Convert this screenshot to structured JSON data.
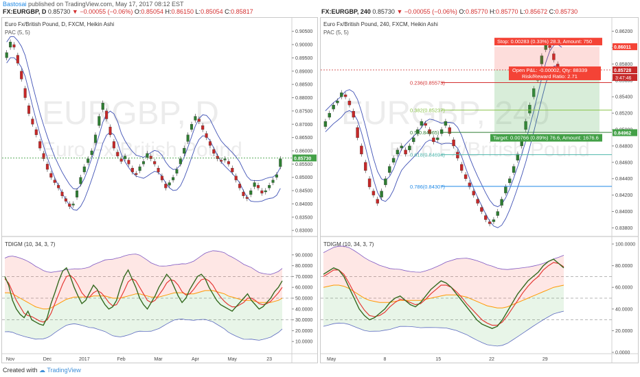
{
  "header": {
    "author": "Bastosai",
    "published": "published on TradingView.com, May 17, 2017 08:12 EST"
  },
  "left": {
    "ohlc": {
      "symbol": "FX:EURGBP, D",
      "last": "0.85730",
      "change": "▼ −0.00055 (−0.06%)",
      "o_label": "O:",
      "o": "0.85054",
      "h_label": "H:",
      "h": "0.86150",
      "l_label": "L:",
      "l": "0.85054",
      "c_label": "C:",
      "c": "0.85817"
    },
    "title": "Euro Fx/British Pound, D, FXCM, Heikin Ashi",
    "indicator": "PAC (5, 5)",
    "watermark_symbol": "EURGBP, D",
    "watermark_name": "Euro Fx/British Pound",
    "price_ticks": [
      "0.90500",
      "0.90000",
      "0.89500",
      "0.89000",
      "0.88500",
      "0.88000",
      "0.87500",
      "0.87000",
      "0.86500",
      "0.86000",
      "0.85500",
      "0.85000",
      "0.84500",
      "0.84000",
      "0.83500",
      "0.83000"
    ],
    "price_tag": "0.85730",
    "osc_title": "TDIGM (10, 34, 3, 7)",
    "osc_ticks": [
      "90.0000",
      "80.0000",
      "70.0000",
      "60.0000",
      "50.0000",
      "40.0000",
      "30.0000",
      "20.0000",
      "10.0000"
    ],
    "time_ticks": [
      "Nov",
      "Dec",
      "2017",
      "Feb",
      "Mar",
      "Apr",
      "May",
      "23"
    ]
  },
  "right": {
    "ohlc": {
      "symbol": "FX:EURGBP, 240",
      "last": "0.85730",
      "change": "▼ −0.00055 (−0.06%)",
      "o_label": "O:",
      "o": "0.85770",
      "h_label": "H:",
      "h": "0.85770",
      "l_label": "L:",
      "l": "0.85672",
      "c_label": "C:",
      "c": "0.85730"
    },
    "title": "Euro Fx/British Pound, 240, FXCM, Heikin Ashi",
    "indicator": "PAC (5, 5)",
    "watermark_symbol": "EURGBP, 240",
    "watermark_name": "Euro Fx/British Pound",
    "price_ticks": [
      "0.86200",
      "0.86000",
      "0.85800",
      "0.85600",
      "0.85400",
      "0.85200",
      "0.85000",
      "0.84800",
      "0.84600",
      "0.84400",
      "0.84200",
      "0.84000",
      "0.83800"
    ],
    "stop_label": "Stop: 0.00283 (0.33%) 28.3, Amount: 750",
    "stop_tag": "0.86011",
    "pnl_line1": "Open P&L: -0.00002, Qty: 88339",
    "pnl_line2": "Risk/Reward Ratio: 2.71",
    "price_tag": "0.85728",
    "time_tag": "3:47:46",
    "target_label": "Target: 0.00766 (0.89%) 76.6, Amount: 1676.6",
    "target_tag": "0.84962",
    "fib": [
      {
        "label": "0.236(0.85573)",
        "price": 0.85573,
        "color": "#d32f2f"
      },
      {
        "label": "0.382(0.85237)",
        "price": 0.85237,
        "color": "#8bc34a"
      },
      {
        "label": "0.5(0.84965)",
        "price": 0.84965,
        "color": "#2e7d32"
      },
      {
        "label": "0.618(0.84694)",
        "price": 0.84694,
        "color": "#4db6ac"
      },
      {
        "label": "0.786(0.84307)",
        "price": 0.84307,
        "color": "#1e88e5"
      }
    ],
    "osc_title": "TDIGM (10, 34, 3, 7)",
    "osc_ticks": [
      "100.0000",
      "80.0000",
      "60.0000",
      "40.0000",
      "20.0000",
      "0.0000"
    ],
    "time_ticks": [
      "May",
      "8",
      "15",
      "22",
      "29"
    ]
  },
  "footer": {
    "created_with": "Created with",
    "brand": "TradingView"
  },
  "colors": {
    "bull": "#2e7d32",
    "bear": "#c62828",
    "pac": "#3f51b5",
    "stop": "#f44336",
    "target": "#43a047"
  },
  "chart_data": [
    {
      "type": "candlestick",
      "title": "Euro Fx/British Pound, D, FXCM, Heikin Ashi",
      "ylim": [
        0.8285,
        0.9075
      ],
      "x_range": [
        "Nov",
        "23"
      ],
      "note_values": "approximate heikin-ashi path",
      "closes": [
        0.897,
        0.901,
        0.899,
        0.893,
        0.887,
        0.88,
        0.874,
        0.87,
        0.866,
        0.861,
        0.857,
        0.853,
        0.85,
        0.848,
        0.846,
        0.843,
        0.841,
        0.839,
        0.84,
        0.845,
        0.85,
        0.854,
        0.857,
        0.86,
        0.866,
        0.873,
        0.878,
        0.872,
        0.866,
        0.861,
        0.858,
        0.856,
        0.858,
        0.855,
        0.852,
        0.851,
        0.854,
        0.856,
        0.859,
        0.857,
        0.855,
        0.852,
        0.849,
        0.846,
        0.848,
        0.85,
        0.853,
        0.857,
        0.861,
        0.866,
        0.87,
        0.873,
        0.871,
        0.868,
        0.865,
        0.862,
        0.859,
        0.857,
        0.856,
        0.857,
        0.855,
        0.852,
        0.849,
        0.846,
        0.843,
        0.842,
        0.845,
        0.848,
        0.846,
        0.844,
        0.845,
        0.847,
        0.849,
        0.851,
        0.857
      ]
    },
    {
      "type": "line",
      "title": "TDIGM (10, 34, 3, 7)",
      "ylim": [
        0,
        100
      ],
      "series": [
        {
          "values": [
            70,
            62,
            48,
            40,
            35,
            32,
            38,
            30,
            28,
            26,
            25,
            32,
            45,
            55,
            66,
            75,
            78,
            70,
            60,
            52,
            45,
            48,
            55,
            62,
            58,
            50,
            44,
            40,
            42,
            48,
            60,
            70,
            76,
            68,
            60,
            50,
            44,
            40,
            46,
            52,
            60,
            66,
            72,
            68,
            60,
            52,
            46,
            50,
            58,
            64,
            70,
            72,
            68,
            60,
            54,
            48,
            44,
            42,
            40,
            38,
            42,
            46,
            50,
            54,
            48,
            44,
            40,
            42,
            46,
            50,
            56,
            60,
            66
          ]
        },
        {
          "values": [
            68,
            64,
            56,
            48,
            42,
            36,
            34,
            33,
            31,
            29,
            28,
            30,
            36,
            45,
            54,
            63,
            70,
            71,
            68,
            62,
            55,
            51,
            51,
            55,
            57,
            55,
            51,
            46,
            43,
            44,
            50,
            57,
            65,
            68,
            66,
            60,
            54,
            48,
            46,
            48,
            53,
            58,
            64,
            67,
            66,
            62,
            56,
            53,
            54,
            58,
            63,
            67,
            68,
            66,
            62,
            56,
            51,
            47,
            44,
            42,
            42,
            44,
            46,
            50,
            50,
            48,
            45,
            44,
            45,
            47,
            51,
            55,
            60
          ]
        },
        {
          "values": [
            55,
            55,
            54,
            52,
            50,
            48,
            46,
            44,
            42,
            41,
            40,
            40,
            41,
            43,
            45,
            47,
            49,
            50,
            51,
            51,
            51,
            51,
            51,
            52,
            52,
            52,
            52,
            51,
            50,
            50,
            50,
            51,
            52,
            53,
            54,
            54,
            53,
            52,
            51,
            51,
            51,
            52,
            53,
            54,
            55,
            55,
            55,
            54,
            54,
            54,
            55,
            56,
            57,
            57,
            57,
            56,
            55,
            54,
            52,
            51,
            50,
            49,
            48,
            48,
            48,
            47,
            46,
            46,
            46,
            46,
            47,
            48,
            50
          ]
        }
      ]
    },
    {
      "type": "candlestick",
      "title": "Euro Fx/British Pound, 240, FXCM, Heikin Ashi",
      "ylim": [
        0.8372,
        0.8628
      ],
      "x_range": [
        "May",
        "29"
      ],
      "note_values": "approximate heikin-ashi path",
      "closes": [
        0.851,
        0.852,
        0.853,
        0.8535,
        0.8545,
        0.854,
        0.853,
        0.8515,
        0.849,
        0.847,
        0.845,
        0.843,
        0.842,
        0.841,
        0.8425,
        0.844,
        0.8455,
        0.8465,
        0.8475,
        0.848,
        0.847,
        0.848,
        0.849,
        0.85,
        0.851,
        0.8505,
        0.8495,
        0.8485,
        0.849,
        0.85,
        0.851,
        0.8495,
        0.848,
        0.8465,
        0.845,
        0.844,
        0.843,
        0.842,
        0.841,
        0.84,
        0.839,
        0.8385,
        0.839,
        0.84,
        0.8415,
        0.843,
        0.844,
        0.8455,
        0.847,
        0.849,
        0.851,
        0.853,
        0.855,
        0.857,
        0.859,
        0.8605,
        0.86,
        0.8585,
        0.8575,
        0.8573
      ]
    },
    {
      "type": "line",
      "title": "TDIGM (10, 34, 3, 7)",
      "ylim": [
        0,
        100
      ],
      "series": [
        {
          "values": [
            72,
            75,
            78,
            76,
            70,
            60,
            50,
            40,
            34,
            30,
            32,
            36,
            40,
            46,
            50,
            52,
            48,
            44,
            42,
            46,
            52,
            58,
            62,
            66,
            64,
            60,
            54,
            48,
            42,
            36,
            30,
            26,
            24,
            22,
            24,
            30,
            38,
            46,
            54,
            60,
            66,
            70,
            74,
            80,
            84,
            86,
            82,
            78
          ]
        },
        {
          "values": [
            70,
            73,
            76,
            76,
            72,
            64,
            55,
            46,
            39,
            34,
            33,
            34,
            37,
            42,
            46,
            49,
            48,
            46,
            44,
            45,
            49,
            54,
            58,
            62,
            62,
            60,
            56,
            51,
            45,
            40,
            35,
            30,
            27,
            25,
            25,
            28,
            34,
            41,
            48,
            55,
            61,
            66,
            70,
            76,
            80,
            83,
            82,
            79
          ]
        },
        {
          "values": [
            60,
            61,
            62,
            62,
            61,
            59,
            56,
            53,
            50,
            48,
            47,
            46,
            46,
            46,
            47,
            48,
            48,
            48,
            48,
            48,
            49,
            50,
            51,
            52,
            53,
            53,
            53,
            52,
            51,
            49,
            47,
            45,
            43,
            42,
            41,
            41,
            42,
            44,
            46,
            48,
            50,
            52,
            54,
            56,
            58,
            60,
            61,
            62
          ]
        }
      ]
    }
  ]
}
